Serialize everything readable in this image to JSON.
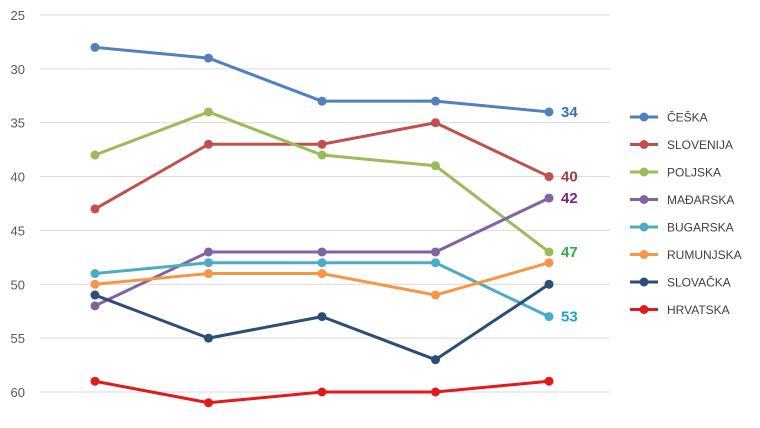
{
  "chart_data": {
    "type": "line",
    "y_axis": {
      "min": 25,
      "max": 60,
      "step": 5,
      "reversed": true,
      "tick_labels": [
        "25",
        "30",
        "35",
        "40",
        "45",
        "50",
        "55",
        "60"
      ]
    },
    "x_count": 5,
    "grid": "horizontal",
    "legend_position": "right",
    "series": [
      {
        "name": "ČEŠKA",
        "color": "#4f81bd",
        "values": [
          28,
          29,
          33,
          33,
          34
        ],
        "end_label": "34",
        "end_label_color": "#2e75b6"
      },
      {
        "name": "SLOVENIJA",
        "color": "#c0504d",
        "values": [
          43,
          37,
          37,
          35,
          40
        ],
        "end_label": "40",
        "end_label_color": "#a0403d"
      },
      {
        "name": "POLJSKA",
        "color": "#9bbb59",
        "values": [
          38,
          34,
          38,
          39,
          47
        ],
        "end_label": "47",
        "end_label_color": "#2eab47"
      },
      {
        "name": "MAĐARSKA",
        "color": "#8064a2",
        "values": [
          52,
          47,
          47,
          47,
          42
        ],
        "end_label": "42",
        "end_label_color": "#7a1f8a"
      },
      {
        "name": "BUGARSKA",
        "color": "#4bacc6",
        "values": [
          49,
          48,
          48,
          48,
          53
        ],
        "end_label": "53",
        "end_label_color": "#1fa3d6"
      },
      {
        "name": "RUMUNJSKA",
        "color": "#f79646",
        "values": [
          50,
          49,
          49,
          51,
          48
        ]
      },
      {
        "name": "SLOVAČKA",
        "color": "#2c4d75",
        "values": [
          51,
          55,
          53,
          57,
          50
        ]
      },
      {
        "name": "HRVATSKA",
        "color": "#e31a1c",
        "values": [
          59,
          61,
          60,
          60,
          59
        ]
      }
    ]
  }
}
